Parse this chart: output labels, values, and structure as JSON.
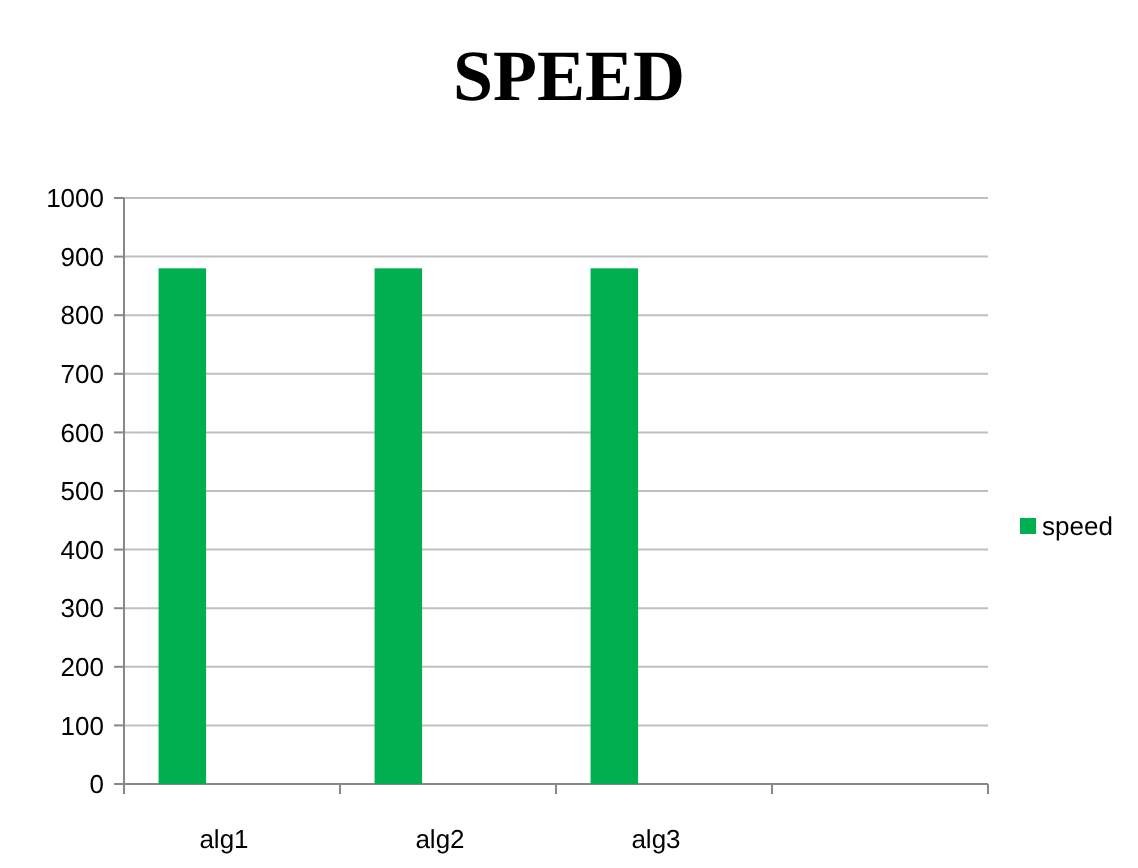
{
  "chart_data": {
    "type": "bar",
    "title": "SPEED",
    "categories": [
      "alg1",
      "alg2",
      "alg3",
      null
    ],
    "series": [
      {
        "name": "speed",
        "color": "#00b050",
        "values": [
          880,
          880,
          880,
          null
        ]
      }
    ],
    "ylim": [
      0,
      1000
    ],
    "yticks": [
      0,
      100,
      200,
      300,
      400,
      500,
      600,
      700,
      800,
      900,
      1000
    ],
    "grid": "y",
    "legend": "right"
  }
}
